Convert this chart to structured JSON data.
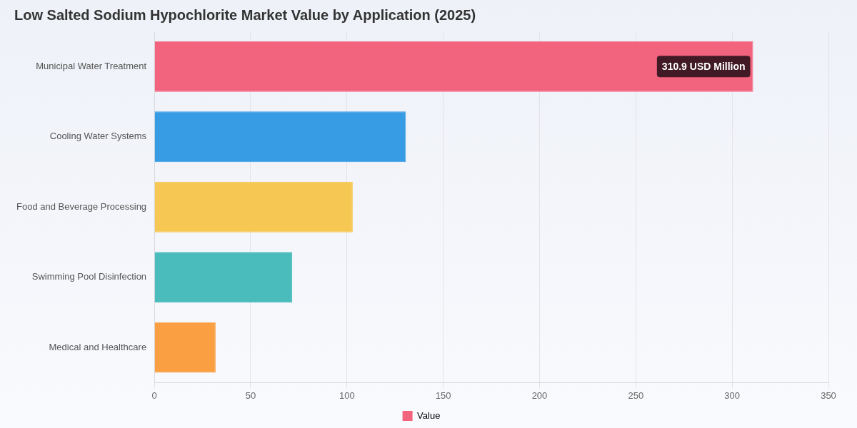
{
  "chart_data": {
    "type": "bar",
    "orientation": "horizontal",
    "title": "Low Salted Sodium Hypochlorite Market Value by Application (2025)",
    "categories": [
      "Municipal Water Treatment",
      "Cooling Water Systems",
      "Food and Beverage Processing",
      "Swimming Pool Disinfection",
      "Medical and Healthcare"
    ],
    "series": [
      {
        "name": "Value",
        "colors": [
          "#f2637e",
          "#379ce4",
          "#f6c752",
          "#4bbcbc",
          "#fa9f42"
        ],
        "values": [
          310.9,
          130.6,
          103,
          71.6,
          31.8
        ],
        "value_labels": [
          "310.9 USD Million",
          null,
          null,
          null,
          null
        ]
      }
    ],
    "xlim": [
      0,
      350
    ],
    "xticks": [
      0,
      50,
      100,
      150,
      200,
      250,
      300,
      350
    ],
    "grid": "x",
    "legend": "bottom"
  }
}
